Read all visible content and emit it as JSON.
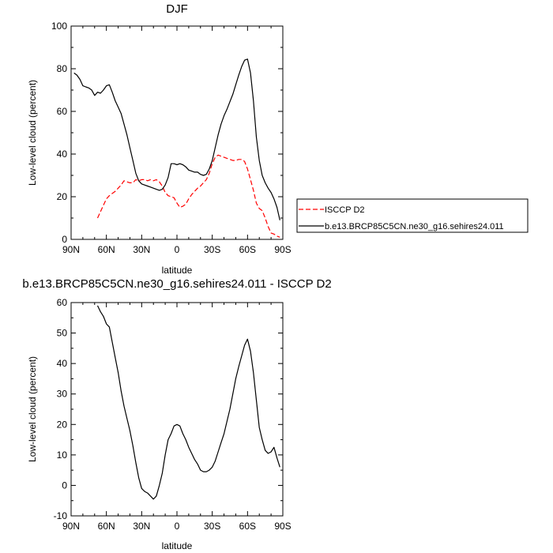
{
  "chart_data": [
    {
      "type": "line",
      "title": "DJF",
      "xlabel": "latitude",
      "ylabel": "Low-level cloud (percent)",
      "xlim": [
        90,
        -90
      ],
      "ylim": [
        0,
        100
      ],
      "x_ticks": [
        90,
        60,
        30,
        0,
        -30,
        -60,
        -90
      ],
      "x_tick_labels": [
        "90N",
        "60N",
        "30N",
        "0",
        "30S",
        "60S",
        "90S"
      ],
      "y_ticks": [
        0,
        20,
        40,
        60,
        80,
        100
      ],
      "y_tick_labels": [
        "0",
        "20",
        "40",
        "60",
        "80",
        "100"
      ],
      "legend_position": "right",
      "series": [
        {
          "name": "ISCCP D2",
          "color": "#ff0000",
          "dash": "dashed",
          "x": [
            67.5,
            65,
            62.5,
            60,
            57.5,
            55,
            52.5,
            50,
            47.5,
            45,
            42.5,
            40,
            37.5,
            35,
            32.5,
            30,
            27.5,
            25,
            22.5,
            20,
            17.5,
            15,
            12.5,
            10,
            7.5,
            5,
            2.5,
            0,
            -2.5,
            -5,
            -7.5,
            -10,
            -12.5,
            -15,
            -17.5,
            -20,
            -22.5,
            -25,
            -27.5,
            -30,
            -32.5,
            -35,
            -37.5,
            -40,
            -42.5,
            -45,
            -47.5,
            -50,
            -52.5,
            -55,
            -57.5,
            -60,
            -62.5,
            -65,
            -67.5,
            -70,
            -72.5,
            -75,
            -77.5,
            -80,
            -82.5,
            -85,
            -87.5
          ],
          "y": [
            10,
            13,
            16,
            19,
            20.5,
            21.5,
            22.5,
            24,
            25.5,
            27.5,
            27,
            26.5,
            26.5,
            28,
            27.5,
            28,
            28,
            27.5,
            28,
            27.5,
            28,
            27,
            25,
            22,
            20.5,
            20,
            19.5,
            17,
            15,
            15.5,
            16.5,
            19,
            21,
            22.5,
            24,
            25,
            26.5,
            28,
            31,
            35.5,
            38.5,
            39.5,
            39,
            38.5,
            38,
            37.5,
            37,
            37,
            37.5,
            37.5,
            36.5,
            33,
            28,
            23,
            17,
            14.5,
            13.5,
            10,
            6,
            3,
            2.5,
            1.5,
            1
          ]
        },
        {
          "name": "b.e13.BRCP85C5CN.ne30_g16.sehires24.011",
          "color": "#000000",
          "dash": "solid",
          "x": [
            87.5,
            85,
            82.5,
            80,
            77.5,
            75,
            72.5,
            70,
            67.5,
            65,
            62.5,
            60,
            57.5,
            55,
            52.5,
            50,
            47.5,
            45,
            42.5,
            40,
            37.5,
            35,
            32.5,
            30,
            27.5,
            25,
            22.5,
            20,
            17.5,
            15,
            12.5,
            10,
            7.5,
            5,
            2.5,
            0,
            -2.5,
            -5,
            -7.5,
            -10,
            -12.5,
            -15,
            -17.5,
            -20,
            -22.5,
            -25,
            -27.5,
            -30,
            -32.5,
            -35,
            -37.5,
            -40,
            -42.5,
            -45,
            -47.5,
            -50,
            -52.5,
            -55,
            -57.5,
            -60,
            -62.5,
            -65,
            -67.5,
            -70,
            -72.5,
            -75,
            -77.5,
            -80,
            -82.5,
            -85,
            -87.5
          ],
          "y": [
            78,
            77,
            75,
            72,
            71.5,
            71,
            70,
            67.5,
            69,
            68.5,
            70,
            72,
            72.5,
            69,
            65,
            62,
            59,
            54,
            49,
            43,
            37,
            31,
            27.5,
            26,
            25.5,
            25,
            24.5,
            24,
            23.5,
            23,
            23.5,
            25.5,
            29,
            35.5,
            35.5,
            35,
            35.5,
            35,
            34,
            32.5,
            32,
            31.5,
            31.5,
            30.5,
            30,
            30.5,
            33,
            37,
            43,
            49,
            54,
            58,
            61,
            64.5,
            68,
            72.5,
            77,
            81,
            84,
            84.5,
            78,
            65,
            48,
            37,
            30,
            26.5,
            24,
            22,
            19,
            15,
            9
          ]
        }
      ]
    },
    {
      "type": "line",
      "title": "b.e13.BRCP85C5CN.ne30_g16.sehires24.011 - ISCCP D2",
      "xlabel": "latitude",
      "ylabel": "Low-level cloud (percent)",
      "xlim": [
        90,
        -90
      ],
      "ylim": [
        -10,
        60
      ],
      "x_ticks": [
        90,
        60,
        30,
        0,
        -30,
        -60,
        -90
      ],
      "x_tick_labels": [
        "90N",
        "60N",
        "30N",
        "0",
        "30S",
        "60S",
        "90S"
      ],
      "y_ticks": [
        -10,
        0,
        10,
        20,
        30,
        40,
        50,
        60
      ],
      "y_tick_labels": [
        "-10",
        "0",
        "10",
        "20",
        "30",
        "40",
        "50",
        "60"
      ],
      "series": [
        {
          "color": "#000000",
          "dash": "solid",
          "x": [
            67.5,
            65,
            62.5,
            60,
            57.5,
            55,
            52.5,
            50,
            47.5,
            45,
            42.5,
            40,
            37.5,
            35,
            32.5,
            30,
            27.5,
            25,
            22.5,
            20,
            17.5,
            15,
            12.5,
            10,
            7.5,
            5,
            2.5,
            0,
            -2.5,
            -5,
            -7.5,
            -10,
            -12.5,
            -15,
            -17.5,
            -20,
            -22.5,
            -25,
            -27.5,
            -30,
            -32.5,
            -35,
            -37.5,
            -40,
            -42.5,
            -45,
            -47.5,
            -50,
            -52.5,
            -55,
            -57.5,
            -60,
            -62.5,
            -65,
            -67.5,
            -70,
            -72.5,
            -75,
            -77.5,
            -80,
            -82.5,
            -85,
            -87.5
          ],
          "y": [
            59,
            57,
            55.5,
            53,
            52,
            47,
            42,
            37,
            31,
            26,
            22,
            18,
            13,
            7.5,
            2.5,
            -1,
            -2,
            -2.5,
            -3.5,
            -4.5,
            -3.5,
            0,
            4,
            10,
            15,
            17,
            19.5,
            20,
            19.5,
            17,
            15,
            12.5,
            10.5,
            8.5,
            7,
            5,
            4.5,
            4.5,
            5,
            6,
            8,
            11,
            14,
            17,
            21,
            25,
            30,
            35,
            39,
            42.5,
            46,
            48,
            44,
            37,
            28,
            19,
            15,
            11.5,
            10.5,
            11,
            12.5,
            9,
            6
          ]
        }
      ]
    }
  ]
}
